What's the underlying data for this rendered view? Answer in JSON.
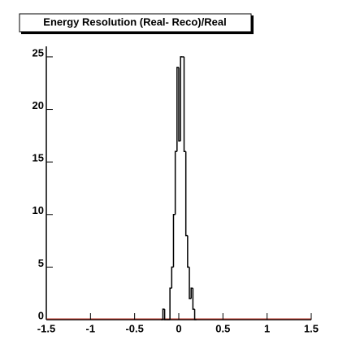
{
  "chart_data": {
    "type": "histogram",
    "title": "Energy Resolution (Real- Reco)/Real",
    "bins": [
      -0.2,
      -0.18,
      -0.16,
      -0.14,
      -0.12,
      -0.1,
      -0.08,
      -0.06,
      -0.04,
      -0.02,
      0,
      0.02,
      0.04,
      0.06,
      0.08,
      0.1,
      0.12,
      0.14,
      0.16,
      0.18,
      0.2
    ],
    "counts": [
      0,
      1,
      0,
      0,
      0,
      3,
      5,
      10,
      16,
      24,
      17,
      25,
      25,
      16,
      8,
      5,
      2,
      3,
      1,
      0
    ],
    "color": "#000000",
    "xlim": [
      -1.5,
      1.5
    ],
    "xticks": [
      -1.5,
      -1,
      -0.5,
      0,
      0.5,
      1,
      1.5
    ],
    "ylim": [
      0,
      26
    ],
    "yticks": [
      0,
      5,
      10,
      15,
      20,
      25
    ]
  }
}
